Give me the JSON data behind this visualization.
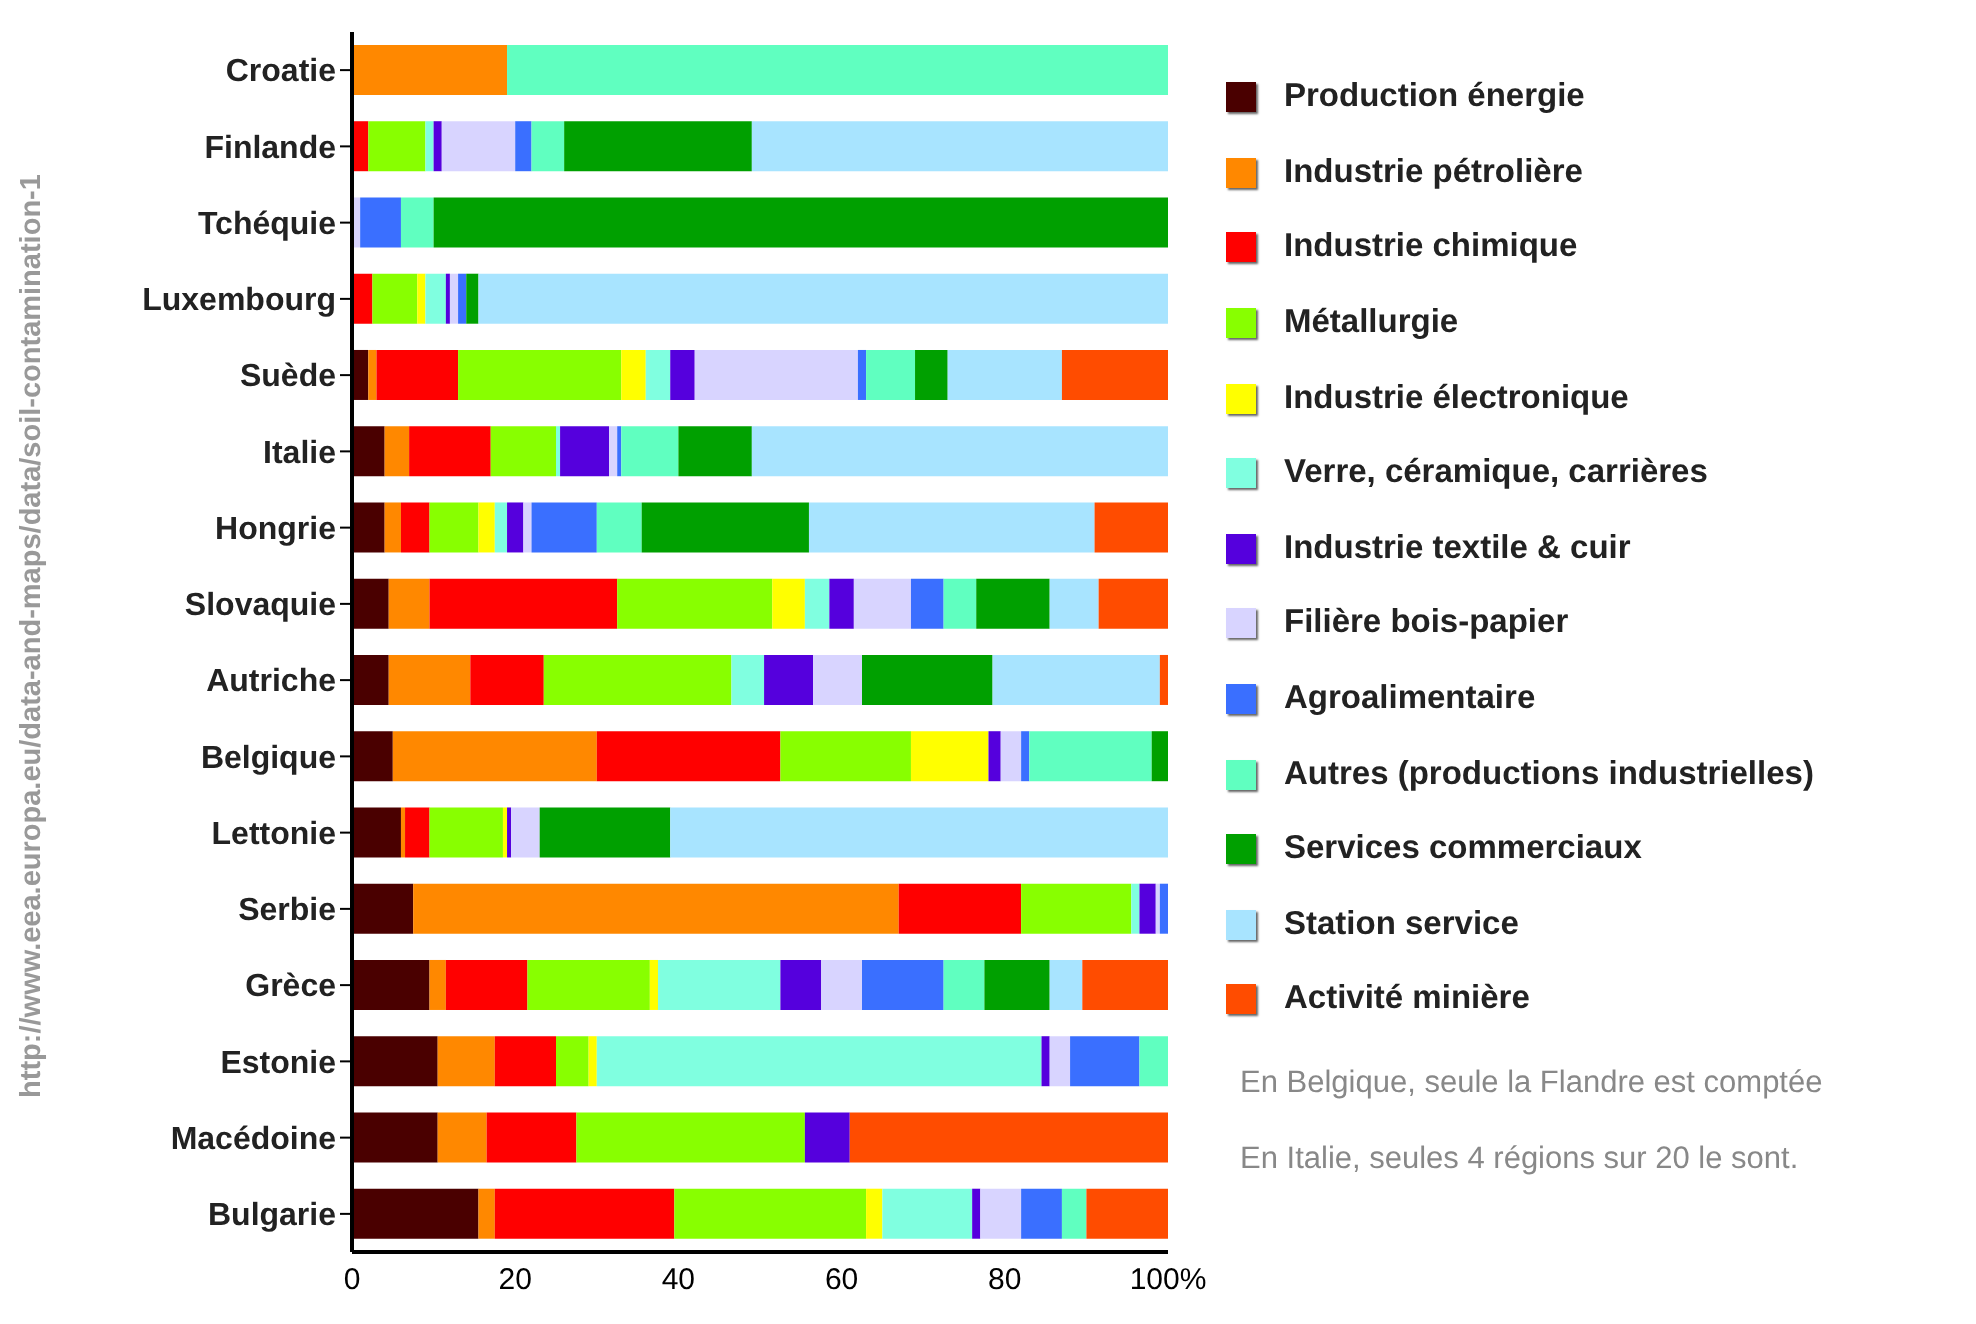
{
  "chart_data": {
    "type": "bar",
    "orientation": "horizontal",
    "stacked": true,
    "categories": [
      "Croatie",
      "Finlande",
      "Tchéquie",
      "Luxembourg",
      "Suède",
      "Italie",
      "Hongrie",
      "Slovaquie",
      "Autriche",
      "Belgique",
      "Lettonie",
      "Serbie",
      "Grèce",
      "Estonie",
      "Macédoine",
      "Bulgarie"
    ],
    "series": [
      {
        "name": "Production énergie",
        "color": "#4a0000",
        "values": [
          0,
          0,
          0,
          0,
          2,
          4,
          4,
          4.5,
          4.5,
          5,
          6,
          7.5,
          9.5,
          10.5,
          10.5,
          15.5
        ]
      },
      {
        "name": "Industrie pétrolière",
        "color": "#ff8800",
        "values": [
          19,
          0,
          0,
          0,
          1,
          3,
          2,
          5,
          10,
          25,
          0.5,
          59.5,
          2,
          7,
          6,
          2
        ]
      },
      {
        "name": "Industrie chimique",
        "color": "#ff0000",
        "values": [
          0,
          2,
          0,
          2.5,
          10,
          10,
          3.5,
          23,
          9,
          22.5,
          3,
          15,
          10,
          7.5,
          11,
          22
        ]
      },
      {
        "name": "Métallurgie",
        "color": "#88ff00",
        "values": [
          0,
          7,
          0,
          5.5,
          20,
          8,
          6,
          19,
          23,
          16,
          9,
          13.5,
          15,
          4,
          28,
          23.5
        ]
      },
      {
        "name": "Industrie électronique",
        "color": "#ffff00",
        "values": [
          0,
          0,
          0,
          1,
          3,
          0,
          2,
          4,
          0,
          9.5,
          0.5,
          0,
          1,
          1,
          0,
          2
        ]
      },
      {
        "name": "Verre, céramique, carrières",
        "color": "#80ffe0",
        "values": [
          0,
          1,
          0,
          2.5,
          3,
          0.5,
          1.5,
          3,
          4,
          0,
          0,
          1,
          15,
          54.5,
          0,
          11
        ]
      },
      {
        "name": "Industrie textile & cuir",
        "color": "#5500dd",
        "values": [
          0,
          1,
          0,
          0.5,
          3,
          6,
          2,
          3,
          6,
          1.5,
          0.5,
          2,
          5,
          1,
          5.5,
          1
        ]
      },
      {
        "name": "Filière bois-papier",
        "color": "#d8d4ff",
        "values": [
          0,
          9,
          1,
          1,
          20,
          1,
          1,
          7,
          6,
          2.5,
          3.5,
          0.5,
          5,
          2.5,
          0,
          5
        ]
      },
      {
        "name": "Agroalimentaire",
        "color": "#3a6fff",
        "values": [
          0,
          2,
          5,
          1,
          1,
          0.5,
          8,
          4,
          0,
          1,
          0,
          1,
          10,
          8.5,
          0,
          5
        ]
      },
      {
        "name": "Autres (productions industrielles)",
        "color": "#60ffc0",
        "values": [
          81,
          4,
          4,
          0,
          6,
          7,
          5.5,
          4,
          0,
          15,
          0,
          0,
          5,
          3.5,
          0,
          3
        ]
      },
      {
        "name": "Services commerciaux",
        "color": "#00a000",
        "values": [
          0,
          23,
          90,
          1.5,
          4,
          9,
          20.5,
          9,
          16,
          2,
          16,
          0,
          8,
          0,
          0,
          0
        ]
      },
      {
        "name": "Station service",
        "color": "#a8e4ff",
        "values": [
          0,
          51,
          0,
          84.5,
          14,
          51,
          35,
          6,
          20.5,
          0,
          61,
          0,
          4,
          0,
          0,
          0
        ]
      },
      {
        "name": "Activité minière",
        "color": "#ff4c00",
        "values": [
          0,
          0,
          0,
          0,
          13,
          0,
          9,
          8.5,
          1,
          0,
          0,
          0,
          10.5,
          0,
          39,
          10
        ]
      }
    ],
    "xlim": [
      0,
      100
    ],
    "xticks": [
      0,
      20,
      40,
      60,
      80,
      {
        "value": 100,
        "label": "100%"
      }
    ],
    "legend": "right",
    "annotations": [
      "En Belgique, seule la Flandre est comptée",
      "En Italie, seules 4 régions sur 20 le sont.",
      "http://www.eea.europa.eu/data-and-maps/data/soil-contamination-1"
    ]
  }
}
